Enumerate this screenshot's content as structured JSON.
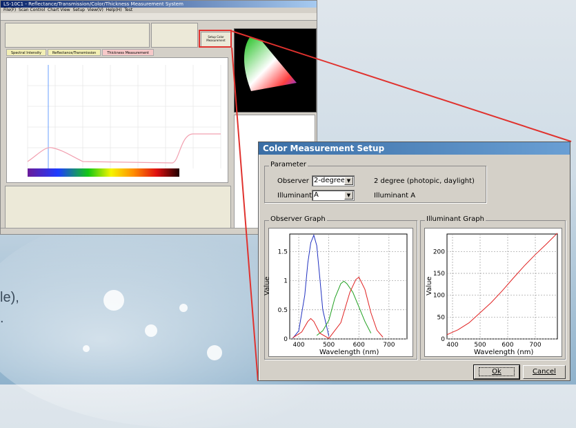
{
  "background": {
    "text_fragments": [
      "le),",
      "."
    ]
  },
  "app": {
    "title": "LS-10C1 - Reflectance/Transmission/Color/Thickness Measurement System",
    "menu": [
      "File(F)",
      "Scan Control",
      "Chart View",
      "Setup",
      "View(V)",
      "Help(H)",
      "Test"
    ],
    "tabs": [
      "Spectral Intensity",
      "Reflectance/Transmission",
      "Thickness Measurement"
    ],
    "setup_button": "Setup Color Measurement"
  },
  "dialog": {
    "title": "Color Measurement Setup",
    "parameter": {
      "group_label": "Parameter",
      "observer_label": "Observer",
      "observer_value": "2-degree",
      "observer_desc": "2 degree (photopic, daylight)",
      "illuminant_label": "Illuminant",
      "illuminant_value": "A",
      "illuminant_desc": "Illuminant A"
    },
    "observer_graph": {
      "group_label": "Observer Graph",
      "ylabel": "Value",
      "xlabel": "Wavelength (nm)"
    },
    "illuminant_graph": {
      "group_label": "Illuminant Graph",
      "ylabel": "Value",
      "xlabel": "Wavelength (nm)"
    },
    "ok_label": "Ok",
    "cancel_label": "Cancel"
  },
  "chart_data": [
    {
      "type": "line",
      "title": "",
      "xlabel": "Wavelength (nm)",
      "ylabel": "Value",
      "xlim": [
        370,
        760
      ],
      "ylim": [
        0,
        1.8
      ],
      "xticks": [
        400,
        500,
        600,
        700
      ],
      "yticks": [
        0,
        0.5,
        1,
        1.5
      ],
      "grid": true,
      "colors": [
        "#2030c0",
        "#20a020",
        "#e02020"
      ],
      "series": [
        {
          "color": "#2030c0",
          "x": [
            380,
            400,
            420,
            430,
            440,
            450,
            460,
            470,
            480,
            500
          ],
          "y": [
            0.01,
            0.14,
            0.75,
            1.3,
            1.65,
            1.78,
            1.6,
            1.05,
            0.5,
            0.05
          ]
        },
        {
          "color": "#20a020",
          "x": [
            460,
            480,
            500,
            520,
            540,
            550,
            560,
            580,
            600,
            620,
            640
          ],
          "y": [
            0.06,
            0.14,
            0.32,
            0.7,
            0.95,
            0.99,
            0.95,
            0.8,
            0.55,
            0.3,
            0.1
          ]
        },
        {
          "color": "#e02020",
          "x": [
            380,
            410,
            430,
            440,
            450,
            470,
            500,
            540,
            570,
            590,
            600,
            620,
            640,
            660,
            680
          ],
          "y": [
            0.02,
            0.12,
            0.3,
            0.35,
            0.3,
            0.1,
            0.01,
            0.28,
            0.8,
            1.02,
            1.06,
            0.85,
            0.45,
            0.15,
            0.03
          ]
        }
      ]
    },
    {
      "type": "line",
      "title": "",
      "xlabel": "Wavelength (nm)",
      "ylabel": "Value",
      "xlim": [
        380,
        780
      ],
      "ylim": [
        0,
        240
      ],
      "xticks": [
        400,
        500,
        600,
        700
      ],
      "yticks": [
        0,
        50,
        100,
        150,
        200
      ],
      "grid": true,
      "colors": [
        "#e02020"
      ],
      "series": [
        {
          "color": "#e02020",
          "x": [
            380,
            420,
            460,
            500,
            540,
            580,
            620,
            660,
            700,
            740,
            780
          ],
          "y": [
            9.8,
            21,
            37,
            60,
            83,
            110,
            139,
            167,
            193,
            217,
            242
          ]
        }
      ]
    }
  ]
}
